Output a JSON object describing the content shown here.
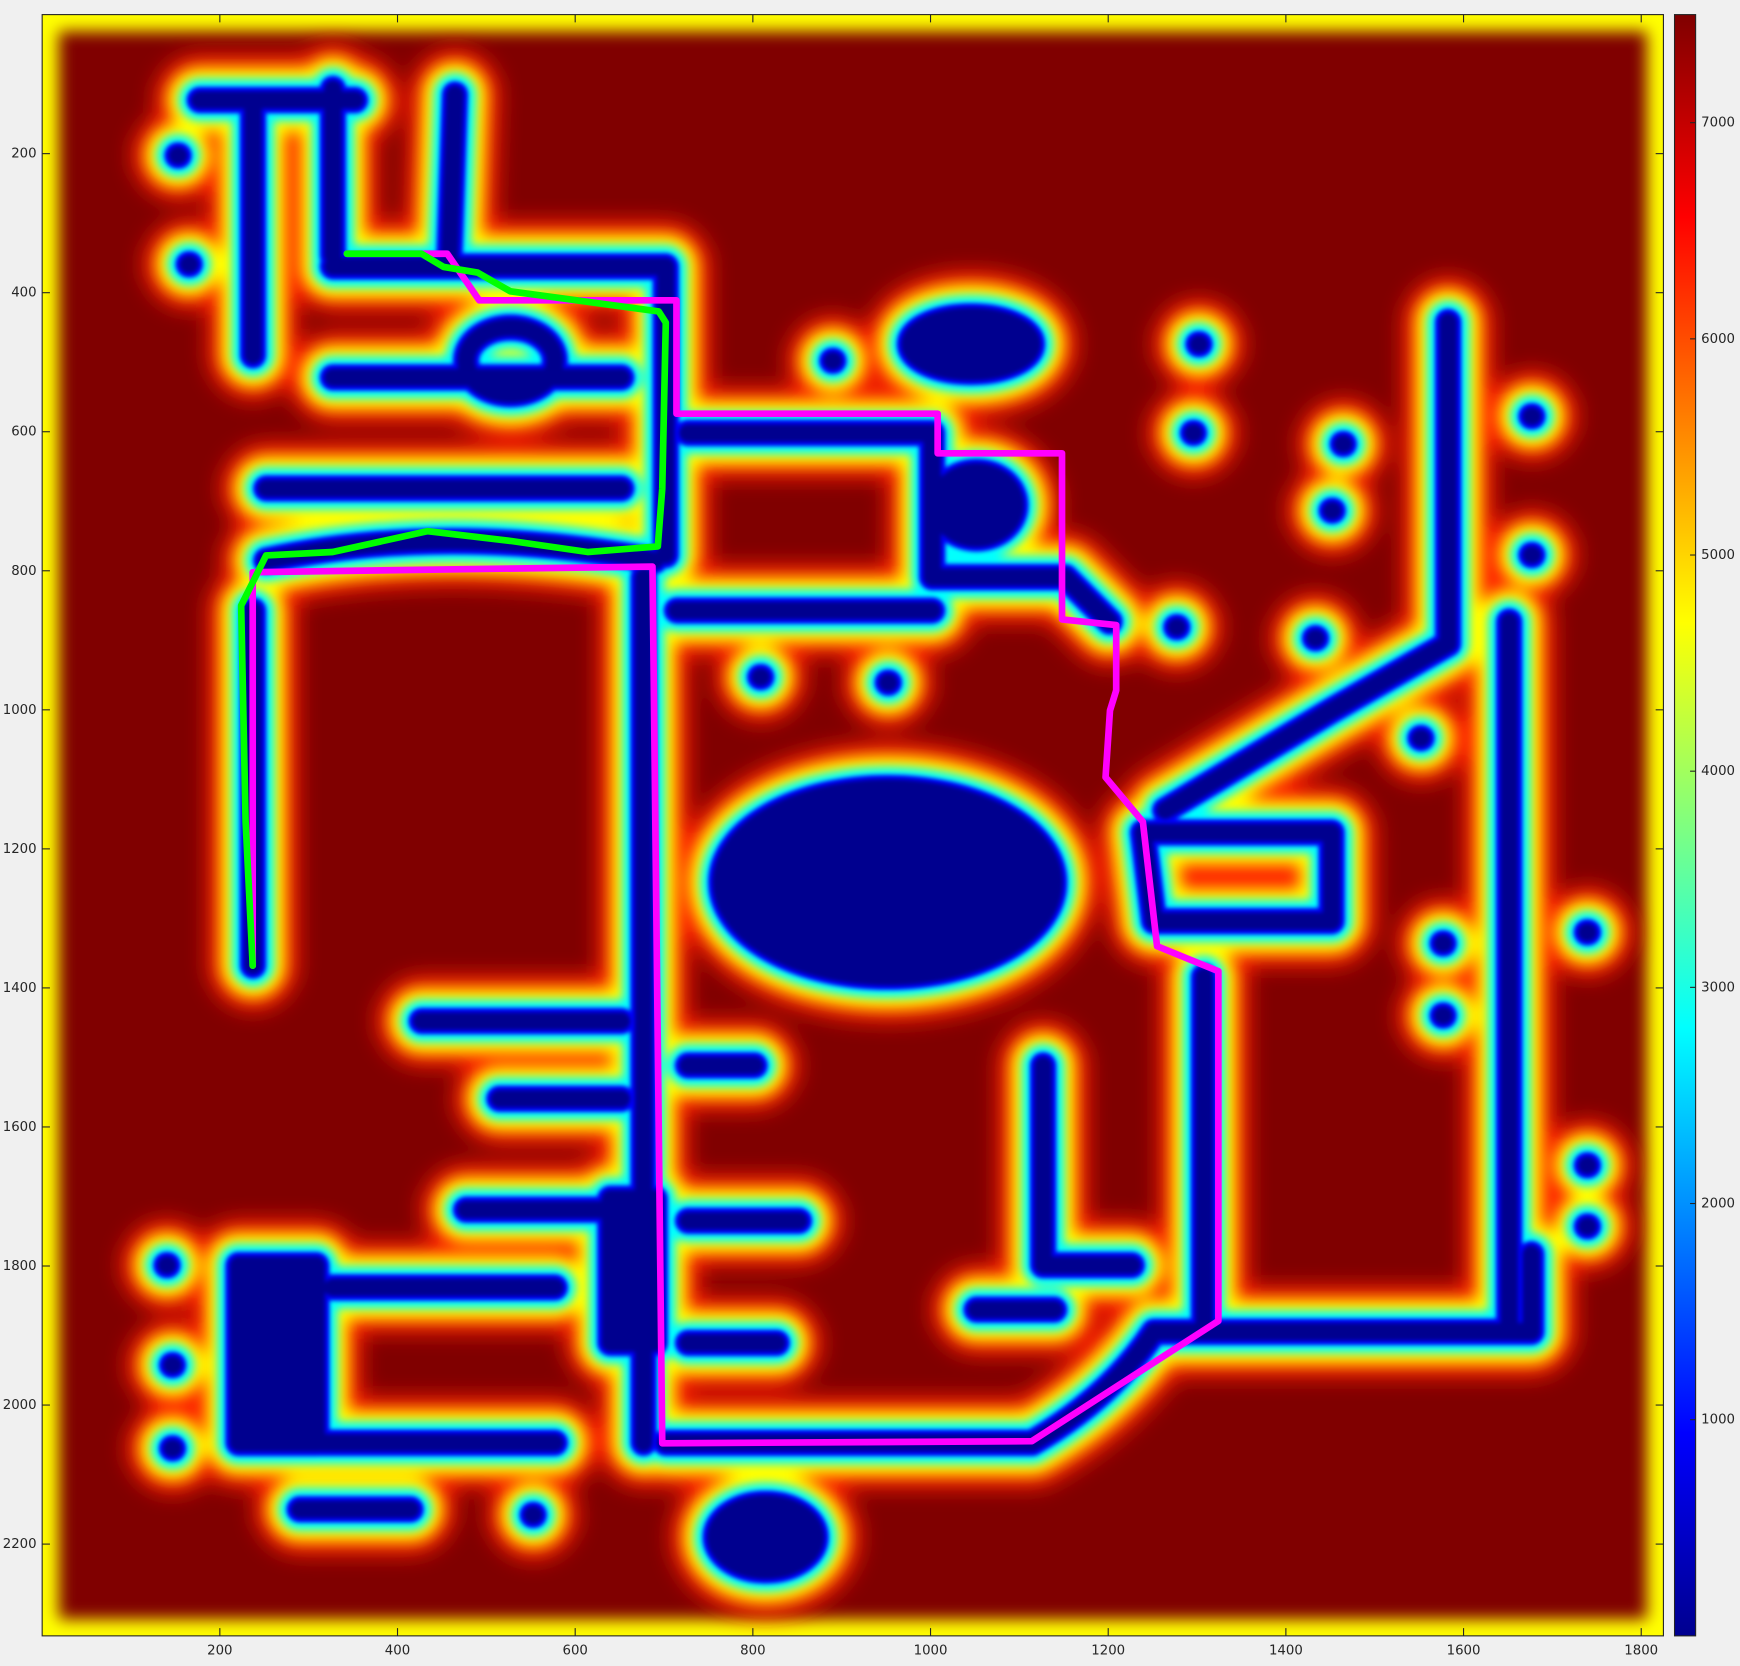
{
  "chart_data": {
    "type": "line",
    "xlim": [
      0,
      1825
    ],
    "ylim": [
      0,
      2332
    ],
    "y_reversed": true,
    "xticks": [
      200,
      400,
      600,
      800,
      1000,
      1200,
      1400,
      1600,
      1800
    ],
    "yticks": [
      200,
      400,
      600,
      800,
      1000,
      1200,
      1400,
      1600,
      1800,
      2000,
      2200
    ],
    "series": [
      {
        "color": "#ff00ff",
        "x": [
          237,
          237,
          687,
          698,
          1114,
          1324,
          1324,
          1255,
          1239,
          1197,
          1202,
          1209,
          1209,
          1148,
          1148,
          1008,
          1008,
          714,
          714,
          492,
          456,
          343
        ],
        "values": [
          1368,
          802,
          794,
          2055,
          2052,
          1879,
          1376,
          1340,
          1161,
          1097,
          1001,
          972,
          878,
          870,
          631,
          631,
          574,
          574,
          411,
          411,
          344,
          344
        ]
      },
      {
        "color": "#00ff00",
        "x": [
          237,
          229,
          224,
          252,
          327,
          434,
          527,
          614,
          693,
          698,
          702,
          694,
          527,
          490,
          452,
          427,
          390,
          343
        ],
        "values": [
          1368,
          1161,
          850,
          778,
          773,
          743,
          757,
          773,
          765,
          682,
          443,
          427,
          398,
          371,
          363,
          344,
          344,
          344
        ]
      }
    ],
    "colorbar": {
      "lim": [
        0,
        7500
      ],
      "ticks": [
        1000,
        2000,
        3000,
        4000,
        5000,
        6000,
        7000
      ]
    }
  }
}
